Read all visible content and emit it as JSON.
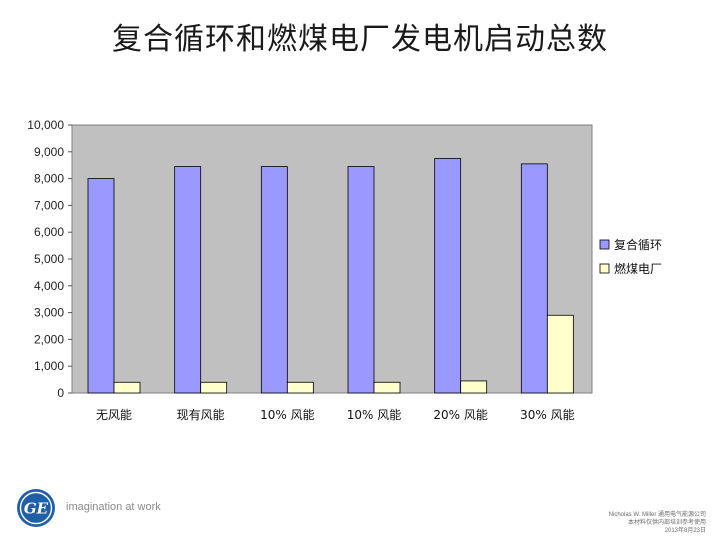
{
  "slide": {
    "title": "复合循环和燃煤电厂发电机启动总数"
  },
  "chart_data": {
    "type": "bar",
    "title": "",
    "xlabel": "",
    "ylabel": "",
    "categories": [
      "无风能",
      "现有风能",
      "10% 风能",
      "10% 风能",
      "20% 风能",
      "30% 风能"
    ],
    "series": [
      {
        "name": "复合循环",
        "values": [
          8000,
          8450,
          8450,
          8450,
          8750,
          8550
        ],
        "color": "#9999ff"
      },
      {
        "name": "燃煤电厂",
        "values": [
          400,
          400,
          400,
          400,
          450,
          2900
        ],
        "color": "#ffffcc"
      }
    ],
    "ylim": [
      0,
      10000
    ],
    "yticks": [
      "0",
      "1,000",
      "2,000",
      "3,000",
      "4,000",
      "5,000",
      "6,000",
      "7,000",
      "8,000",
      "9,000",
      "10,000"
    ],
    "plot_background": "#c0c0c0",
    "grid": false,
    "legend": "right"
  },
  "footer": {
    "tagline": "imagination at work",
    "note_line1": "Nicholas W. Miller 通用电气能源公司",
    "note_line2": "本材料仅供内部培训参考使用",
    "note_line3": "2013年8月23日"
  },
  "icons": {
    "logo": "ge-logo-icon"
  }
}
